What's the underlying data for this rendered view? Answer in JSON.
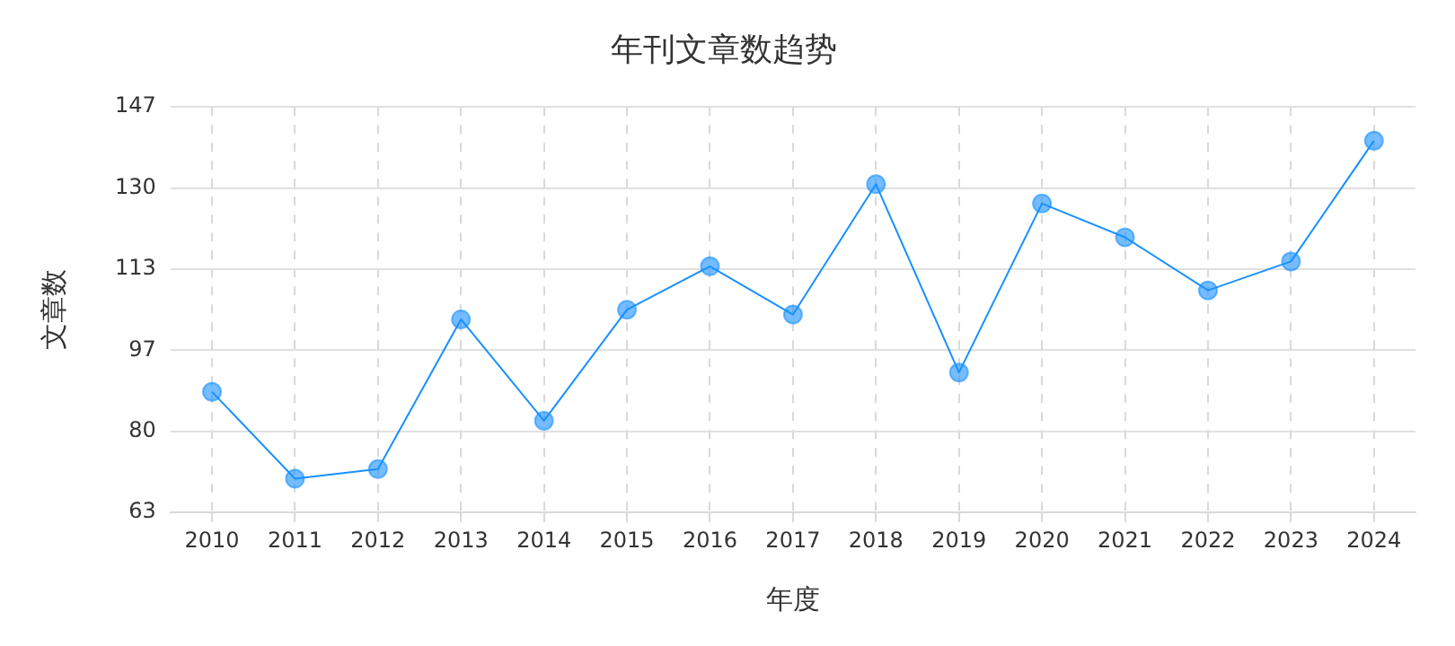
{
  "chart_data": {
    "type": "line",
    "title": "年刊文章数趋势",
    "xlabel": "年度",
    "ylabel": "文章数",
    "categories": [
      "2010",
      "2011",
      "2012",
      "2013",
      "2014",
      "2015",
      "2016",
      "2017",
      "2018",
      "2019",
      "2020",
      "2021",
      "2022",
      "2023",
      "2024"
    ],
    "series": [
      {
        "color": "#1890ff",
        "values": [
          88,
          70,
          72,
          103,
          82,
          105,
          114,
          104,
          131,
          92,
          127,
          120,
          109,
          115,
          140
        ]
      }
    ],
    "ylim": [
      63,
      147
    ],
    "yticks": [
      63,
      {
        "value": 79.8,
        "label": "80"
      },
      {
        "value": 96.6,
        "label": "97"
      },
      {
        "value": 113.4,
        "label": "113"
      },
      {
        "value": 130.2,
        "label": "130"
      },
      147
    ],
    "grid": true,
    "marker": "circle",
    "line_style": "solid",
    "legend": false
  }
}
